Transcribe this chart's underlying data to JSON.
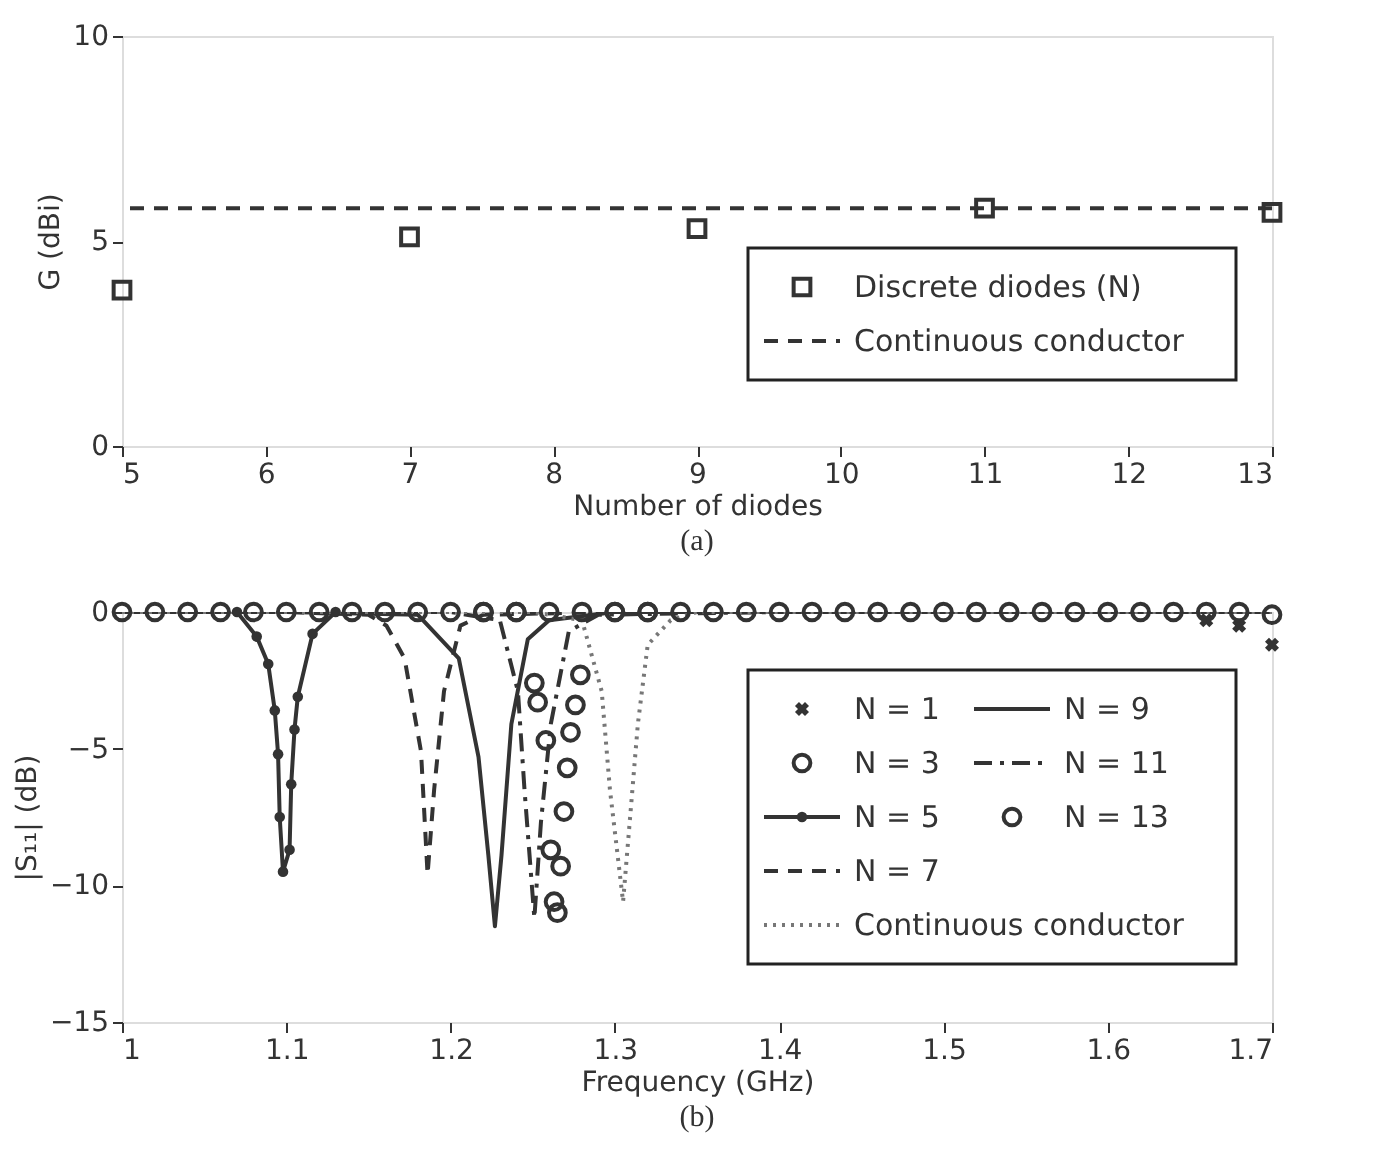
{
  "chart_data": [
    {
      "type": "scatter",
      "xlabel": "Number of diodes",
      "ylabel": "G (dBi)",
      "x": [
        5,
        7,
        9,
        11,
        13
      ],
      "marker": "square",
      "legend": "bottom right",
      "grid": false,
      "series": [
        {
          "name": "Discrete diodes (N)",
          "color": "#333333",
          "values": [
            3.8,
            5.1,
            5.3,
            5.8,
            5.7
          ]
        }
      ],
      "ref_lines": [
        {
          "axis": "y",
          "value": 5.8,
          "label": "Continuous conductor",
          "color": "#333333",
          "line_style": "dashed"
        }
      ],
      "xlim": [
        5,
        13
      ],
      "xticks": [
        5,
        6,
        7,
        8,
        9,
        10,
        11,
        12,
        13
      ],
      "ylim": [
        0,
        10
      ],
      "yticks": [
        0,
        5,
        10
      ],
      "annotations": [
        "(a)"
      ]
    },
    {
      "type": "line",
      "xlabel": "Frequency (GHz)",
      "ylabel": "|S₁₁| (dB)",
      "legend": "right",
      "grid": false,
      "series": [
        {
          "name": "N = 1",
          "type": "scatter",
          "marker": "cross",
          "color": "#333333",
          "x": [
            1.66,
            1.68,
            1.7
          ],
          "values": [
            -0.3,
            -0.5,
            -1.2
          ]
        },
        {
          "name": "N = 3",
          "type": "scatter",
          "marker": "circle",
          "color": "#333333",
          "x": [
            1.0,
            1.02,
            1.04,
            1.06,
            1.08,
            1.1,
            1.12,
            1.14,
            1.16,
            1.18,
            1.2,
            1.22,
            1.24,
            1.26,
            1.28,
            1.3,
            1.32,
            1.34,
            1.36,
            1.38,
            1.4,
            1.42,
            1.44,
            1.46,
            1.48,
            1.5,
            1.52,
            1.54,
            1.56,
            1.58,
            1.6,
            1.62,
            1.64,
            1.66,
            1.68,
            1.7
          ],
          "values": [
            0,
            0,
            0,
            0,
            0,
            0,
            0,
            0,
            0,
            0,
            0,
            0,
            0,
            0,
            0,
            0,
            0,
            0,
            0,
            0,
            0,
            0,
            0,
            0,
            0,
            0,
            0,
            0,
            0,
            0,
            0,
            0,
            0,
            0,
            0,
            -0.1
          ]
        },
        {
          "name": "N = 5",
          "type": "line",
          "marker": "circle",
          "line_style": "solid",
          "color": "#333333",
          "x": [
            1.07,
            1.082,
            1.089,
            1.093,
            1.095,
            1.096,
            1.098,
            1.102,
            1.103,
            1.105,
            1.107,
            1.116,
            1.13
          ],
          "values": [
            0,
            -0.9,
            -1.9,
            -3.6,
            -5.2,
            -7.5,
            -9.5,
            -8.7,
            -6.3,
            -4.3,
            -3.1,
            -0.8,
            0
          ]
        },
        {
          "name": "N = 7",
          "type": "line",
          "marker": "none",
          "line_style": "dashed",
          "color": "#333333",
          "x": [
            1.0,
            1.1,
            1.15,
            1.161,
            1.172,
            1.182,
            1.186,
            1.19,
            1.196,
            1.206,
            1.22,
            1.3,
            1.4,
            1.5,
            1.6,
            1.7
          ],
          "values": [
            0,
            0,
            -0.1,
            -0.5,
            -1.7,
            -5.1,
            -9.6,
            -6.5,
            -2.9,
            -0.5,
            -0.1,
            0,
            0,
            0,
            0,
            0
          ]
        },
        {
          "name": "N = 9",
          "type": "line",
          "marker": "none",
          "line_style": "solid",
          "color": "#333333",
          "x": [
            1.0,
            1.1,
            1.18,
            1.205,
            1.217,
            1.223,
            1.227,
            1.231,
            1.237,
            1.247,
            1.26,
            1.3,
            1.4,
            1.5,
            1.6,
            1.7
          ],
          "values": [
            0,
            0,
            -0.1,
            -1.7,
            -5.3,
            -8.9,
            -11.5,
            -8.9,
            -4.1,
            -1,
            -0.3,
            0,
            0,
            0,
            0,
            0
          ]
        },
        {
          "name": "N = 11",
          "type": "line",
          "marker": "none",
          "line_style": "dashdot",
          "color": "#333333",
          "x": [
            1.0,
            1.2,
            1.23,
            1.241,
            1.245,
            1.251,
            1.255,
            1.261,
            1.272,
            1.29,
            1.4,
            1.5,
            1.6,
            1.7
          ],
          "values": [
            0,
            0,
            -0.3,
            -2.9,
            -6.5,
            -11.2,
            -7.7,
            -4.1,
            -0.7,
            -0.1,
            0,
            0,
            0,
            0
          ]
        },
        {
          "name": "N = 13",
          "type": "scatter",
          "marker": "circle",
          "color": "#333333",
          "x": [
            1.22,
            1.24,
            1.251,
            1.253,
            1.258,
            1.261,
            1.263,
            1.265,
            1.267,
            1.269,
            1.271,
            1.273,
            1.276,
            1.279,
            1.3,
            1.32
          ],
          "values": [
            0,
            0,
            -2.6,
            -3.3,
            -4.7,
            -8.7,
            -10.6,
            -11.0,
            -9.3,
            -7.3,
            -5.7,
            -4.4,
            -3.4,
            -2.3,
            0,
            0
          ]
        },
        {
          "name": "Continuous conductor",
          "type": "line",
          "marker": "none",
          "line_style": "dotted",
          "color": "#777777",
          "x": [
            1.0,
            1.25,
            1.28,
            1.292,
            1.297,
            1.305,
            1.314,
            1.32,
            1.334,
            1.35,
            1.7
          ],
          "values": [
            0,
            0,
            -0.3,
            -2.9,
            -6.5,
            -10.6,
            -4.1,
            -1.2,
            -0.3,
            0,
            0
          ]
        }
      ],
      "xlim": [
        1,
        1.7
      ],
      "xticks": [
        1,
        1.1,
        1.2,
        1.3,
        1.4,
        1.5,
        1.6,
        1.7
      ],
      "ylim": [
        -15,
        0
      ],
      "yticks": [
        -15,
        -10,
        -5,
        0
      ],
      "annotations": [
        "(b)"
      ]
    }
  ]
}
